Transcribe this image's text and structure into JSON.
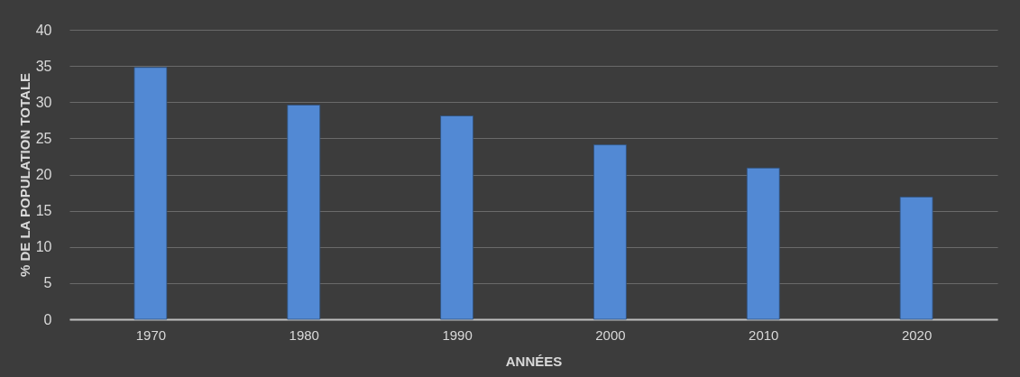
{
  "chart_data": {
    "type": "bar",
    "xlabel": "ANNÉES",
    "ylabel": "% DE LA POPULATION TOTALE",
    "categories": [
      "1970",
      "1980",
      "1990",
      "2000",
      "2010",
      "2020"
    ],
    "values": [
      34.8,
      29.6,
      28.1,
      24.1,
      20.9,
      16.9
    ],
    "color": "#5289d4",
    "ylim": [
      0,
      40
    ],
    "yticks": [
      0,
      5,
      10,
      15,
      20,
      25,
      30,
      35,
      40
    ],
    "grid": "y"
  }
}
